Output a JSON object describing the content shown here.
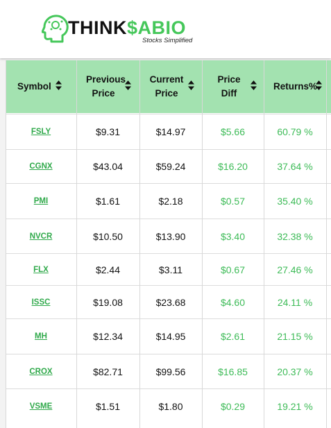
{
  "brand": {
    "name_part1": "THINK",
    "name_part2": "$ABIO",
    "tagline": "Stocks Simplified",
    "accent_color": "#45c75a"
  },
  "table": {
    "header_bg": "#a3e2b0",
    "columns": [
      {
        "key": "symbol",
        "label_line1": "Symbol",
        "label_line2": ""
      },
      {
        "key": "previous_price",
        "label_line1": "Previous",
        "label_line2": "Price"
      },
      {
        "key": "current_price",
        "label_line1": "Current",
        "label_line2": "Price"
      },
      {
        "key": "price_diff",
        "label_line1": "Price",
        "label_line2": "Diff"
      },
      {
        "key": "returns",
        "label_line1": "Returns%",
        "label_line2": ""
      }
    ],
    "rows": [
      {
        "symbol": "FSLY",
        "previous_price": "$9.31",
        "current_price": "$14.97",
        "price_diff": "$5.66",
        "returns": "60.79 %"
      },
      {
        "symbol": "CGNX",
        "previous_price": "$43.04",
        "current_price": "$59.24",
        "price_diff": "$16.20",
        "returns": "37.64 %"
      },
      {
        "symbol": "PMI",
        "previous_price": "$1.61",
        "current_price": "$2.18",
        "price_diff": "$0.57",
        "returns": "35.40 %"
      },
      {
        "symbol": "NVCR",
        "previous_price": "$10.50",
        "current_price": "$13.90",
        "price_diff": "$3.40",
        "returns": "32.38 %"
      },
      {
        "symbol": "FLX",
        "previous_price": "$2.44",
        "current_price": "$3.11",
        "price_diff": "$0.67",
        "returns": "27.46 %"
      },
      {
        "symbol": "ISSC",
        "previous_price": "$19.08",
        "current_price": "$23.68",
        "price_diff": "$4.60",
        "returns": "24.11 %"
      },
      {
        "symbol": "MH",
        "previous_price": "$12.34",
        "current_price": "$14.95",
        "price_diff": "$2.61",
        "returns": "21.15 %"
      },
      {
        "symbol": "CROX",
        "previous_price": "$82.71",
        "current_price": "$99.56",
        "price_diff": "$16.85",
        "returns": "20.37 %"
      },
      {
        "symbol": "VSME",
        "previous_price": "$1.51",
        "current_price": "$1.80",
        "price_diff": "$0.29",
        "returns": "19.21 %"
      }
    ]
  }
}
